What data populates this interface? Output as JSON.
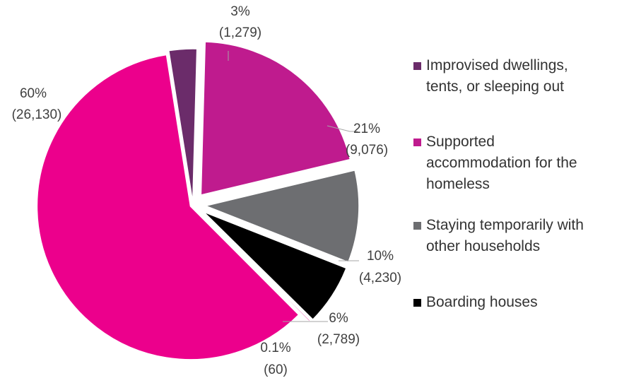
{
  "chart_data": {
    "type": "pie",
    "slices": [
      {
        "name": "Improvised dwellings,\ntents, or sleeping out",
        "value": 1279,
        "pct_label": "3%",
        "count_label": "(1,279)",
        "color": "#6b2c6a"
      },
      {
        "name": "Supported\naccommodation for the\nhomeless",
        "value": 9076,
        "pct_label": "21%",
        "count_label": "(9,076)",
        "color": "#bf1b8e"
      },
      {
        "name": "Staying temporarily with\nother households",
        "value": 4230,
        "pct_label": "10%",
        "count_label": "(4,230)",
        "color": "#6d6e71"
      },
      {
        "name": "Boarding houses",
        "value": 2789,
        "pct_label": "6%",
        "count_label": "(2,789)",
        "color": "#000000"
      },
      {
        "name": "",
        "value": 60,
        "pct_label": "0.1%",
        "count_label": "(60)",
        "color": "#e8008a"
      },
      {
        "name": "",
        "value": 26130,
        "pct_label": "60%",
        "count_label": "(26,130)",
        "color": "#ec008c"
      }
    ],
    "legend_position": "right"
  }
}
